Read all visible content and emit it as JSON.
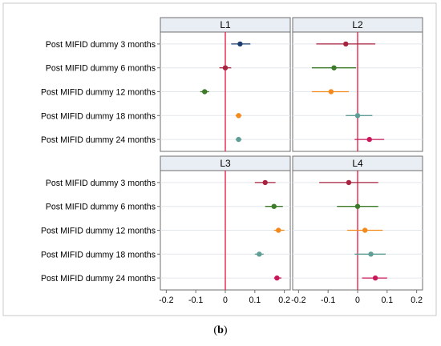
{
  "caption": {
    "open": "(",
    "label": "b",
    "close": ")"
  },
  "chart_data": {
    "type": "scatter",
    "subtype": "coefficient-plot-with-confidence-intervals",
    "xlim": [
      -0.22,
      0.22
    ],
    "x_ticks": [
      -0.2,
      -0.1,
      0,
      0.1,
      0.2
    ],
    "x_tick_labels": [
      "-0.2",
      "-0.1",
      "0",
      "0.1",
      "0.2"
    ],
    "reference_line_x": 0,
    "reference_line_color": "#e8254b",
    "grid": "horizontal",
    "categories": [
      "Post MIFID dummy 3 months",
      "Post MIFID dummy 6 months",
      "Post MIFID dummy 12 months",
      "Post MIFID dummy 18 months",
      "Post MIFID dummy 24 months"
    ],
    "category_colors": [
      "#1b3e6f",
      "#a8233f",
      "#3d7a2a",
      "#f28a1e",
      "#5f9e96"
    ],
    "panels": [
      {
        "title": "L1",
        "colors": [
          "#1b3e6f",
          "#a8233f",
          "#3d7a2a",
          "#f28a1e",
          "#5f9e96"
        ],
        "estimates": [
          0.05,
          0.0,
          -0.07,
          0.045,
          0.045
        ],
        "ci_low": [
          0.02,
          -0.02,
          -0.085,
          0.035,
          0.035
        ],
        "ci_high": [
          0.085,
          0.02,
          -0.055,
          0.055,
          0.055
        ]
      },
      {
        "title": "L2",
        "colors": [
          "#a8233f",
          "#3d7a2a",
          "#f28a1e",
          "#5f9e96",
          "#c8185a"
        ],
        "estimates": [
          -0.04,
          -0.08,
          -0.09,
          0.0,
          0.04
        ],
        "ci_low": [
          -0.14,
          -0.155,
          -0.155,
          -0.04,
          -0.01
        ],
        "ci_high": [
          0.06,
          -0.005,
          -0.03,
          0.05,
          0.09
        ]
      },
      {
        "title": "L3",
        "colors": [
          "#a8233f",
          "#3d7a2a",
          "#f28a1e",
          "#5f9e96",
          "#c8185a"
        ],
        "estimates": [
          0.135,
          0.165,
          0.18,
          0.115,
          0.175
        ],
        "ci_low": [
          0.1,
          0.135,
          0.165,
          0.1,
          0.165
        ],
        "ci_high": [
          0.17,
          0.195,
          0.2,
          0.13,
          0.19
        ]
      },
      {
        "title": "L4",
        "colors": [
          "#a8233f",
          "#3d7a2a",
          "#f28a1e",
          "#5f9e96",
          "#c8185a"
        ],
        "estimates": [
          -0.03,
          0.0,
          0.025,
          0.045,
          0.06
        ],
        "ci_low": [
          -0.13,
          -0.07,
          -0.035,
          -0.01,
          0.015
        ],
        "ci_high": [
          0.07,
          0.07,
          0.085,
          0.095,
          0.1
        ]
      }
    ]
  }
}
